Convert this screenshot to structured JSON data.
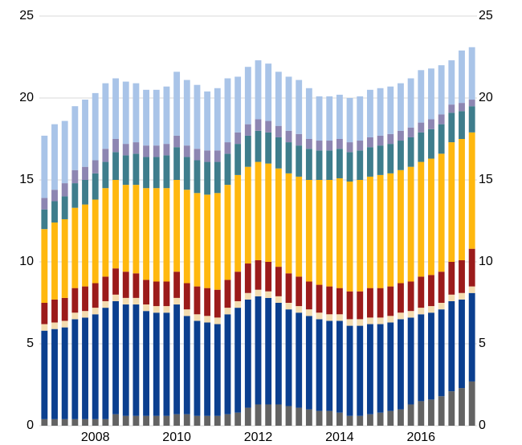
{
  "chart_data": {
    "type": "stacked_bar",
    "categories": [
      null,
      null,
      null,
      null,
      null,
      "2008",
      null,
      null,
      null,
      null,
      null,
      null,
      null,
      "2010",
      null,
      null,
      null,
      null,
      null,
      null,
      null,
      "2012",
      null,
      null,
      null,
      null,
      null,
      null,
      null,
      "2014",
      null,
      null,
      null,
      null,
      null,
      null,
      null,
      "2016",
      null,
      null,
      null,
      null,
      null
    ],
    "series": [
      {
        "color": "#636363",
        "values": [
          0.4,
          0.4,
          0.4,
          0.4,
          0.4,
          0.4,
          0.4,
          0.7,
          0.6,
          0.6,
          0.6,
          0.6,
          0.6,
          0.7,
          0.7,
          0.6,
          0.6,
          0.6,
          0.7,
          0.8,
          1.1,
          1.3,
          1.3,
          1.3,
          1.2,
          1.1,
          1.0,
          0.9,
          0.9,
          0.8,
          0.6,
          0.6,
          0.7,
          0.8,
          0.9,
          1.0,
          1.3,
          1.5,
          1.6,
          1.8,
          2.1,
          2.3,
          2.7
        ]
      },
      {
        "color": "#0b3f8f",
        "values": [
          5.4,
          5.5,
          5.6,
          6.1,
          6.2,
          6.4,
          6.8,
          6.9,
          6.8,
          6.8,
          6.4,
          6.3,
          6.3,
          6.7,
          6.0,
          5.8,
          5.7,
          5.6,
          6.1,
          6.4,
          6.6,
          6.6,
          6.5,
          6.2,
          5.9,
          5.8,
          5.7,
          5.6,
          5.5,
          5.6,
          5.5,
          5.5,
          5.5,
          5.4,
          5.4,
          5.5,
          5.3,
          5.3,
          5.3,
          5.3,
          5.5,
          5.4,
          5.4
        ]
      },
      {
        "color": "#f3dcb0",
        "values": [
          0.4,
          0.4,
          0.4,
          0.4,
          0.4,
          0.4,
          0.4,
          0.4,
          0.4,
          0.4,
          0.4,
          0.4,
          0.4,
          0.4,
          0.4,
          0.4,
          0.4,
          0.4,
          0.4,
          0.4,
          0.4,
          0.4,
          0.4,
          0.4,
          0.4,
          0.4,
          0.4,
          0.4,
          0.4,
          0.4,
          0.4,
          0.4,
          0.4,
          0.4,
          0.4,
          0.4,
          0.4,
          0.4,
          0.4,
          0.4,
          0.4,
          0.4,
          0.4
        ]
      },
      {
        "color": "#9b1b1b",
        "values": [
          1.3,
          1.4,
          1.4,
          1.5,
          1.5,
          1.5,
          1.5,
          1.6,
          1.6,
          1.5,
          1.5,
          1.5,
          1.5,
          1.6,
          1.6,
          1.7,
          1.7,
          1.7,
          1.7,
          1.8,
          1.8,
          1.8,
          1.8,
          1.8,
          1.8,
          1.8,
          1.7,
          1.7,
          1.7,
          1.6,
          1.7,
          1.7,
          1.8,
          1.8,
          1.8,
          1.8,
          1.8,
          1.9,
          1.9,
          1.9,
          2.0,
          2.0,
          2.3
        ]
      },
      {
        "color": "#ffb80f",
        "values": [
          4.5,
          4.7,
          4.8,
          4.9,
          5.0,
          5.1,
          5.4,
          5.4,
          5.3,
          5.4,
          5.6,
          5.7,
          5.7,
          5.6,
          5.7,
          5.7,
          5.7,
          5.9,
          5.8,
          5.9,
          5.9,
          6.0,
          6.0,
          6.0,
          6.1,
          6.1,
          6.2,
          6.4,
          6.5,
          6.7,
          6.7,
          6.8,
          6.8,
          6.9,
          6.9,
          6.9,
          7.0,
          7.0,
          7.1,
          7.2,
          7.3,
          7.4,
          7.1
        ]
      },
      {
        "color": "#3e7d8c",
        "values": [
          1.2,
          1.3,
          1.4,
          1.5,
          1.5,
          1.6,
          1.6,
          1.7,
          1.8,
          1.9,
          1.9,
          1.9,
          2.0,
          2.0,
          2.0,
          2.0,
          2.0,
          1.9,
          1.9,
          1.9,
          1.9,
          1.9,
          1.9,
          1.9,
          1.9,
          1.9,
          1.9,
          1.8,
          1.8,
          1.8,
          1.8,
          1.8,
          1.8,
          1.8,
          1.8,
          1.8,
          1.8,
          1.8,
          1.8,
          1.8,
          1.8,
          1.7,
          1.6
        ]
      },
      {
        "color": "#8d86b2",
        "values": [
          0.7,
          0.7,
          0.8,
          0.8,
          0.8,
          0.8,
          0.8,
          0.8,
          0.7,
          0.7,
          0.7,
          0.7,
          0.7,
          0.7,
          0.7,
          0.7,
          0.7,
          0.7,
          0.7,
          0.7,
          0.7,
          0.7,
          0.7,
          0.7,
          0.7,
          0.7,
          0.6,
          0.6,
          0.6,
          0.6,
          0.6,
          0.6,
          0.6,
          0.6,
          0.6,
          0.6,
          0.6,
          0.6,
          0.6,
          0.6,
          0.5,
          0.5,
          0.4
        ]
      },
      {
        "color": "#a9c4e8",
        "values": [
          3.8,
          4.0,
          3.8,
          3.9,
          4.1,
          4.1,
          4.0,
          3.7,
          3.8,
          3.6,
          3.4,
          3.4,
          3.5,
          3.9,
          4.0,
          3.9,
          3.6,
          3.8,
          3.9,
          3.4,
          3.5,
          3.6,
          3.5,
          3.3,
          3.3,
          3.3,
          3.1,
          2.7,
          2.7,
          2.7,
          2.7,
          2.7,
          2.9,
          2.9,
          2.9,
          2.9,
          3.0,
          3.2,
          3.1,
          3.0,
          2.7,
          3.2,
          3.2
        ]
      }
    ],
    "ylim": [
      0,
      25
    ],
    "yticks": [
      0,
      5,
      10,
      15,
      20,
      25
    ],
    "y2lim": [
      0,
      25
    ],
    "y2ticks": [
      0,
      5,
      10,
      15,
      20,
      25
    ],
    "grid": true
  }
}
